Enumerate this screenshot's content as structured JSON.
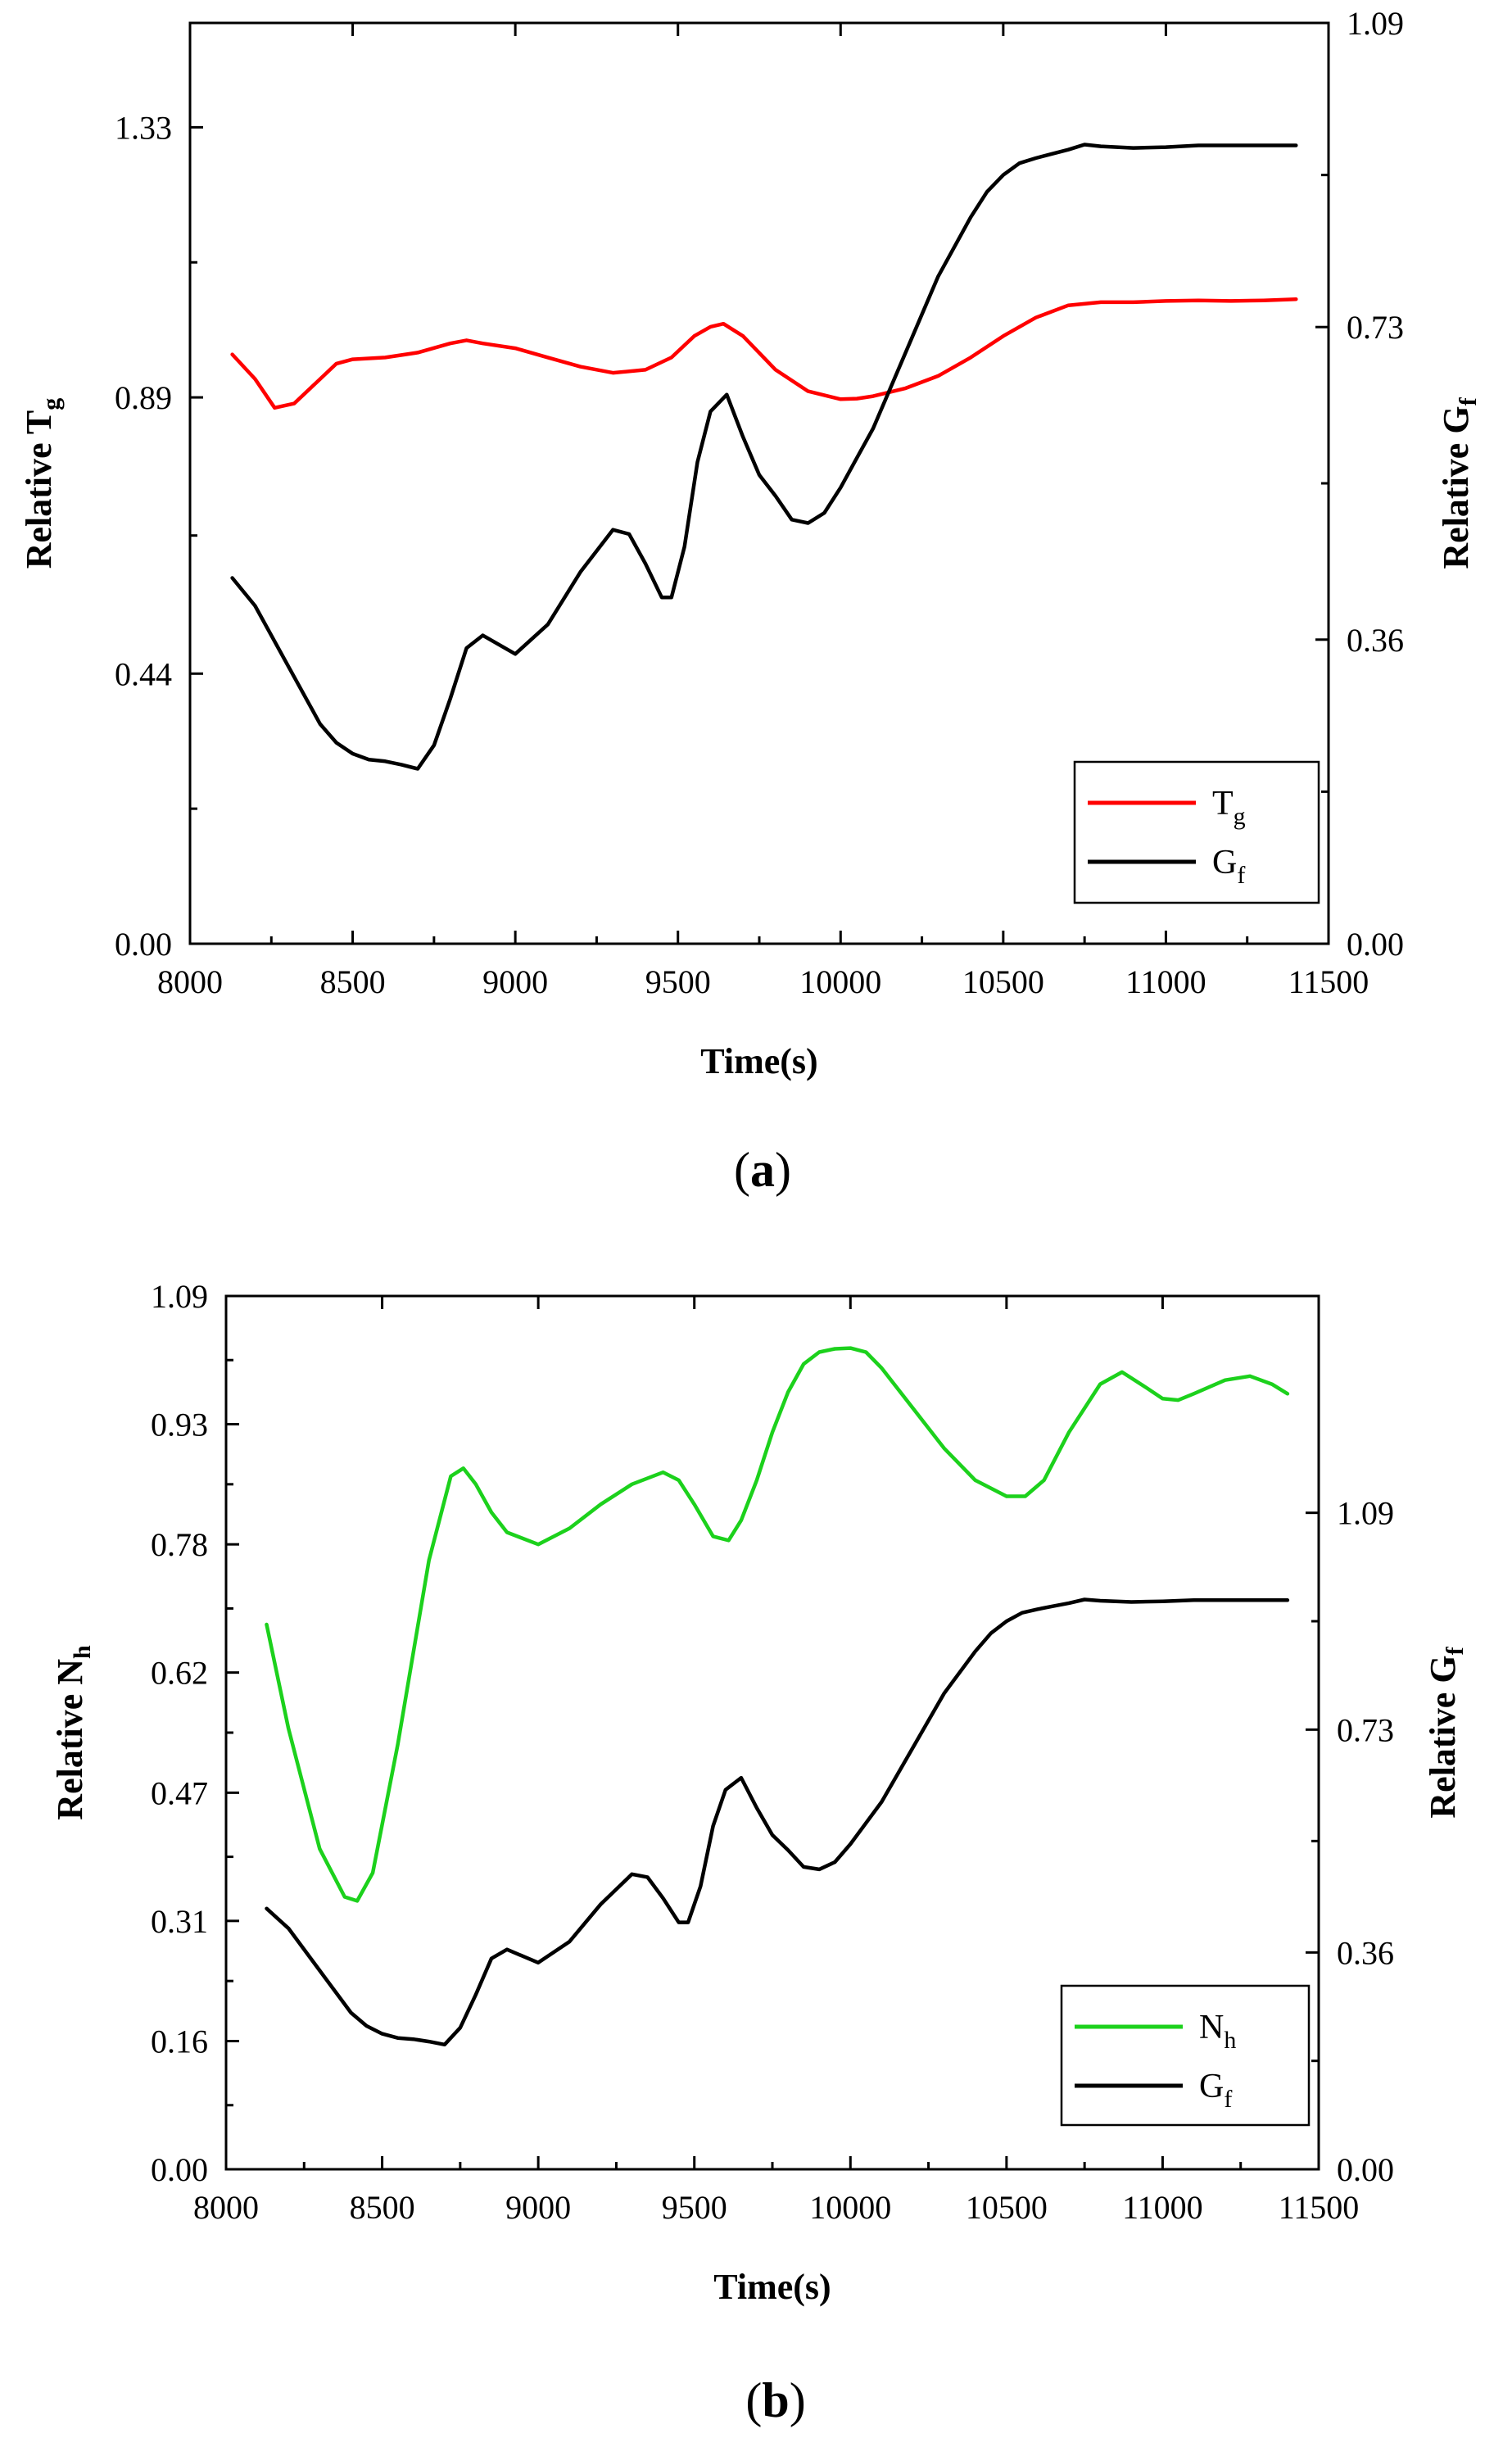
{
  "chart_data": [
    {
      "type": "line",
      "panel_label": "a",
      "xlabel": "Time(s)",
      "ylabel_left": {
        "main": "Relative T",
        "sub": "g"
      },
      "ylabel_right": {
        "main": "Relative G",
        "sub": "f"
      },
      "xlim": [
        8000,
        11500
      ],
      "ylim_left": [
        0,
        1.5
      ],
      "ylim_right": [
        0,
        1.09
      ],
      "xticks": [
        "8000",
        "8500",
        "9000",
        "9500",
        "10000",
        "10500",
        "11000",
        "11500"
      ],
      "yticks_left": [
        "0.00",
        "0.44",
        "0.89",
        "1.33"
      ],
      "yticks_right": [
        "0.00",
        "0.36",
        "0.73",
        "1.09"
      ],
      "legend_position": "bottom-right",
      "series": [
        {
          "name": "T",
          "name_sub": "g",
          "color": "#ff0000",
          "axis": "left",
          "x": [
            8130,
            8200,
            8260,
            8320,
            8400,
            8450,
            8500,
            8600,
            8700,
            8800,
            8850,
            8900,
            9000,
            9100,
            9200,
            9300,
            9400,
            9480,
            9550,
            9600,
            9640,
            9700,
            9800,
            9900,
            10000,
            10050,
            10100,
            10200,
            10300,
            10400,
            10500,
            10600,
            10700,
            10800,
            10900,
            11000,
            11100,
            11200,
            11300,
            11400
          ],
          "y": [
            0.96,
            0.92,
            0.873,
            0.88,
            0.92,
            0.945,
            0.952,
            0.955,
            0.963,
            0.978,
            0.983,
            0.978,
            0.97,
            0.955,
            0.94,
            0.93,
            0.935,
            0.955,
            0.99,
            1.005,
            1.01,
            0.99,
            0.935,
            0.9,
            0.887,
            0.888,
            0.892,
            0.905,
            0.925,
            0.955,
            0.99,
            1.02,
            1.04,
            1.045,
            1.045,
            1.047,
            1.048,
            1.047,
            1.048,
            1.05
          ]
        },
        {
          "name": "G",
          "name_sub": "f",
          "color": "#000000",
          "axis": "right",
          "x": [
            8130,
            8200,
            8300,
            8400,
            8450,
            8500,
            8550,
            8600,
            8650,
            8700,
            8750,
            8800,
            8850,
            8900,
            9000,
            9100,
            9200,
            9300,
            9350,
            9400,
            9450,
            9480,
            9520,
            9560,
            9600,
            9650,
            9700,
            9750,
            9800,
            9850,
            9900,
            9950,
            10000,
            10050,
            10100,
            10200,
            10300,
            10400,
            10450,
            10500,
            10550,
            10600,
            10650,
            10700,
            10750,
            10800,
            10900,
            11000,
            11100,
            11200,
            11300,
            11400
          ],
          "y": [
            0.433,
            0.4,
            0.33,
            0.26,
            0.238,
            0.225,
            0.218,
            0.216,
            0.212,
            0.207,
            0.235,
            0.29,
            0.35,
            0.365,
            0.343,
            0.378,
            0.44,
            0.49,
            0.485,
            0.45,
            0.41,
            0.41,
            0.47,
            0.57,
            0.63,
            0.65,
            0.6,
            0.555,
            0.53,
            0.502,
            0.498,
            0.51,
            0.54,
            0.575,
            0.61,
            0.7,
            0.79,
            0.86,
            0.89,
            0.91,
            0.924,
            0.93,
            0.935,
            0.94,
            0.946,
            0.944,
            0.942,
            0.943,
            0.945,
            0.945,
            0.945,
            0.945
          ]
        }
      ]
    },
    {
      "type": "line",
      "panel_label": "b",
      "xlabel": "Time(s)",
      "ylabel_left": {
        "main": "Relative N",
        "sub": "h"
      },
      "ylabel_right": {
        "main": "Relative G",
        "sub": "f"
      },
      "xlim": [
        8000,
        11500
      ],
      "ylim_left": [
        0,
        1.09
      ],
      "ylim_right": [
        0,
        1.45
      ],
      "xticks": [
        "8000",
        "8500",
        "9000",
        "9500",
        "10000",
        "10500",
        "11000",
        "11500"
      ],
      "yticks_left": [
        "0.00",
        "0.16",
        "0.31",
        "0.47",
        "0.62",
        "0.78",
        "0.93",
        "1.09"
      ],
      "yticks_right": [
        "0.00",
        "0.36",
        "0.73",
        "1.09"
      ],
      "legend_position": "bottom-right",
      "series": [
        {
          "name": "N",
          "name_sub": "h",
          "color": "#1cd11c",
          "axis": "left",
          "x": [
            8130,
            8200,
            8300,
            8380,
            8420,
            8470,
            8550,
            8650,
            8720,
            8760,
            8800,
            8850,
            8900,
            9000,
            9100,
            9200,
            9300,
            9400,
            9450,
            9500,
            9560,
            9610,
            9650,
            9700,
            9750,
            9800,
            9850,
            9900,
            9950,
            10000,
            10050,
            10100,
            10200,
            10300,
            10400,
            10500,
            10560,
            10620,
            10700,
            10800,
            10870,
            10950,
            11000,
            11050,
            11100,
            11200,
            11280,
            11350,
            11400
          ],
          "y": [
            0.68,
            0.55,
            0.4,
            0.34,
            0.335,
            0.37,
            0.53,
            0.76,
            0.865,
            0.875,
            0.855,
            0.82,
            0.795,
            0.78,
            0.8,
            0.83,
            0.855,
            0.87,
            0.86,
            0.83,
            0.79,
            0.785,
            0.81,
            0.86,
            0.92,
            0.97,
            1.005,
            1.02,
            1.024,
            1.025,
            1.02,
            1.0,
            0.95,
            0.9,
            0.86,
            0.84,
            0.84,
            0.86,
            0.92,
            0.98,
            0.995,
            0.975,
            0.962,
            0.96,
            0.968,
            0.985,
            0.99,
            0.98,
            0.968
          ]
        },
        {
          "name": "G",
          "name_sub": "f",
          "color": "#000000",
          "axis": "right",
          "x": [
            8130,
            8200,
            8300,
            8400,
            8450,
            8500,
            8550,
            8600,
            8650,
            8700,
            8750,
            8800,
            8850,
            8900,
            9000,
            9100,
            9200,
            9300,
            9350,
            9400,
            9450,
            9480,
            9520,
            9560,
            9600,
            9650,
            9700,
            9750,
            9800,
            9850,
            9900,
            9950,
            10000,
            10050,
            10100,
            10200,
            10300,
            10400,
            10450,
            10500,
            10550,
            10600,
            10650,
            10700,
            10750,
            10800,
            10900,
            11000,
            11100,
            11200,
            11300,
            11400
          ],
          "y": [
            0.433,
            0.4,
            0.33,
            0.26,
            0.238,
            0.225,
            0.218,
            0.216,
            0.212,
            0.207,
            0.235,
            0.29,
            0.35,
            0.365,
            0.343,
            0.378,
            0.44,
            0.49,
            0.485,
            0.45,
            0.41,
            0.41,
            0.47,
            0.57,
            0.63,
            0.65,
            0.6,
            0.555,
            0.53,
            0.502,
            0.498,
            0.51,
            0.54,
            0.575,
            0.61,
            0.7,
            0.79,
            0.86,
            0.89,
            0.91,
            0.924,
            0.93,
            0.935,
            0.94,
            0.946,
            0.944,
            0.942,
            0.943,
            0.945,
            0.945,
            0.945,
            0.945
          ]
        }
      ]
    }
  ]
}
